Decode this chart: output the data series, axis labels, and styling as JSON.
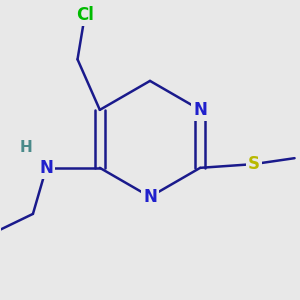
{
  "background_color": "#e8e8e8",
  "bond_color": "#1a1a8c",
  "atom_colors": {
    "N": "#2020cc",
    "S": "#b8b800",
    "Cl": "#00bb00",
    "C": "#1a1a8c",
    "H": "#4a8a8a"
  },
  "bond_width": 1.8,
  "font_size": 12,
  "figsize": [
    3.0,
    3.0
  ],
  "dpi": 100,
  "xlim": [
    -1.8,
    2.2
  ],
  "ylim": [
    -2.2,
    1.8
  ]
}
